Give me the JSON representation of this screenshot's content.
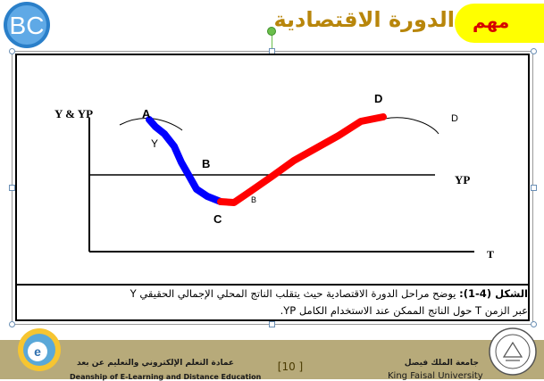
{
  "slide": {
    "title": "الدورة الاقتصادية",
    "tag": "مهم"
  },
  "chart_data": {
    "type": "diagram",
    "axis_label_y": "Y & YP",
    "axis_label_t": "T",
    "yp_label": "YP",
    "point_labels": [
      "A",
      "B",
      "C",
      "D"
    ],
    "curve_labels": [
      "Y",
      "B",
      "D"
    ],
    "phases": [
      {
        "name": "A to C",
        "color": "#0000ff"
      },
      {
        "name": "C to D",
        "color": "#ff0000"
      }
    ]
  },
  "caption": {
    "line1_bold": "الشكل (4-1):",
    "line1": " يوضح مراحل الدورة الاقتصادية حيث يتقلب الناتج المحلي الإجمالي الحقيقي Y",
    "line2": "عبر الزمن T حول الناتج الممكن عند الاستخدام الكامل YP."
  },
  "footer": {
    "dept_ar": "عمادة التعلم الإلكتروني والتعليم عن بعد",
    "dept_en": "Deanship of E-Learning and Distance Education",
    "page": "[10 ]",
    "uni_ar": "جامعة الملك فيصل",
    "uni_en": "King Faisal University"
  },
  "colors": {
    "tag_bg": "#ffff00",
    "tag_text": "#d60000",
    "title": "#b8860b",
    "footer_bg": "#b7aa7a"
  }
}
